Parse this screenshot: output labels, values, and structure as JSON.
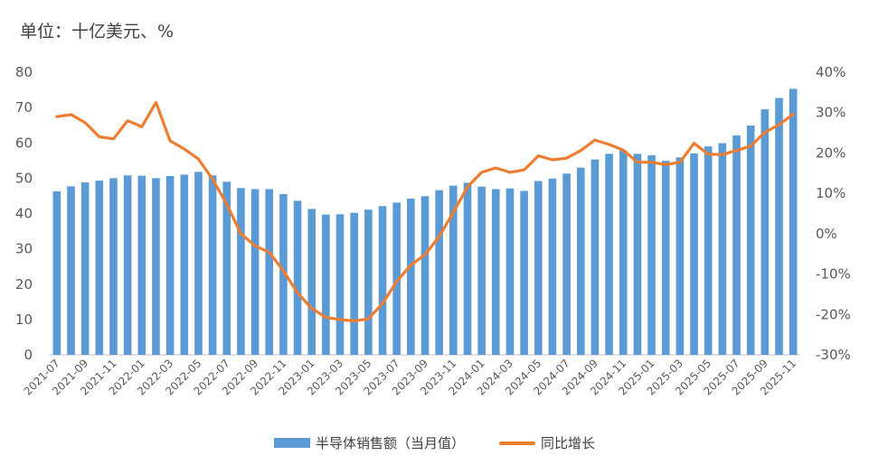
{
  "unit_label": "单位：十亿美元、%",
  "colors": {
    "bar": "#5B9BD5",
    "line": "#ED7D31",
    "axis": "#BFBFBF"
  },
  "chart_data": {
    "type": "bar",
    "title": "",
    "y_left": {
      "min": 0,
      "max": 80,
      "ticks": [
        "0",
        "10",
        "20",
        "30",
        "40",
        "50",
        "60",
        "70",
        "80"
      ]
    },
    "y_right": {
      "min": -30,
      "max": 40,
      "ticks": [
        "-30%",
        "-20%",
        "-10%",
        "0%",
        "10%",
        "20%",
        "30%",
        "40%"
      ]
    },
    "categories": [
      "2021-07",
      "2021-08",
      "2021-09",
      "2021-10",
      "2021-11",
      "2021-12",
      "2022-01",
      "2022-02",
      "2022-03",
      "2022-04",
      "2022-05",
      "2022-06",
      "2022-07",
      "2022-08",
      "2022-09",
      "2022-10",
      "2022-11",
      "2022-12",
      "2023-01",
      "2023-02",
      "2023-03",
      "2023-04",
      "2023-05",
      "2023-06",
      "2023-07",
      "2023-08",
      "2023-09",
      "2023-10",
      "2023-11",
      "2023-12",
      "2024-01",
      "2024-02",
      "2024-03",
      "2024-04",
      "2024-05",
      "2024-06",
      "2024-07",
      "2024-08",
      "2024-09",
      "2024-10",
      "2024-11",
      "2024-12",
      "2025-01",
      "2025-02",
      "2025-03",
      "2025-04",
      "2025-05",
      "2025-06",
      "2025-07",
      "2025-08",
      "2025-09",
      "2025-10",
      "2025-11"
    ],
    "x_tick_labels": [
      "2021-07",
      "2021-09",
      "2021-11",
      "2022-01",
      "2022-03",
      "2022-05",
      "2022-07",
      "2022-09",
      "2022-11",
      "2023-01",
      "2023-03",
      "2023-05",
      "2023-07",
      "2023-09",
      "2023-11",
      "2024-01",
      "2024-03",
      "2024-05",
      "2024-07",
      "2024-09",
      "2024-11",
      "2025-01",
      "2025-03",
      "2025-05",
      "2025-07",
      "2025-09",
      "2025-11"
    ],
    "series": [
      {
        "name": "半导体销售额（当月值）",
        "type": "bar",
        "axis": "left",
        "values": [
          46.3,
          47.7,
          48.8,
          49.3,
          50.0,
          50.8,
          50.7,
          50.0,
          50.6,
          51.0,
          51.8,
          50.8,
          49.0,
          47.2,
          46.9,
          46.9,
          45.5,
          43.6,
          41.3,
          39.7,
          39.8,
          40.2,
          41.1,
          42.1,
          43.1,
          44.2,
          44.9,
          46.6,
          47.9,
          48.7,
          47.6,
          46.9,
          47.1,
          46.4,
          49.2,
          49.9,
          51.3,
          53.0,
          55.3,
          56.9,
          57.8,
          56.9,
          56.5,
          54.9,
          55.9,
          57.0,
          59.0,
          59.9,
          62.1,
          64.9,
          69.5,
          72.7,
          75.3
        ]
      },
      {
        "name": "同比增长",
        "type": "line",
        "axis": "right",
        "values": [
          29.0,
          29.5,
          27.5,
          24.0,
          23.5,
          28.0,
          26.5,
          32.5,
          23.0,
          21.0,
          18.5,
          13.5,
          7.3,
          0.0,
          -3.0,
          -4.6,
          -9.2,
          -14.7,
          -18.5,
          -20.7,
          -21.3,
          -21.6,
          -21.1,
          -17.3,
          -11.8,
          -7.8,
          -5.2,
          -0.7,
          5.3,
          11.6,
          15.2,
          16.3,
          15.2,
          15.8,
          19.3,
          18.3,
          18.7,
          20.6,
          23.2,
          22.1,
          20.7,
          17.7,
          17.7,
          17.1,
          17.7,
          22.4,
          19.7,
          19.6,
          20.6,
          21.7,
          25.1,
          27.0,
          29.6
        ]
      }
    ],
    "legend_position": "bottom",
    "grid": false
  }
}
